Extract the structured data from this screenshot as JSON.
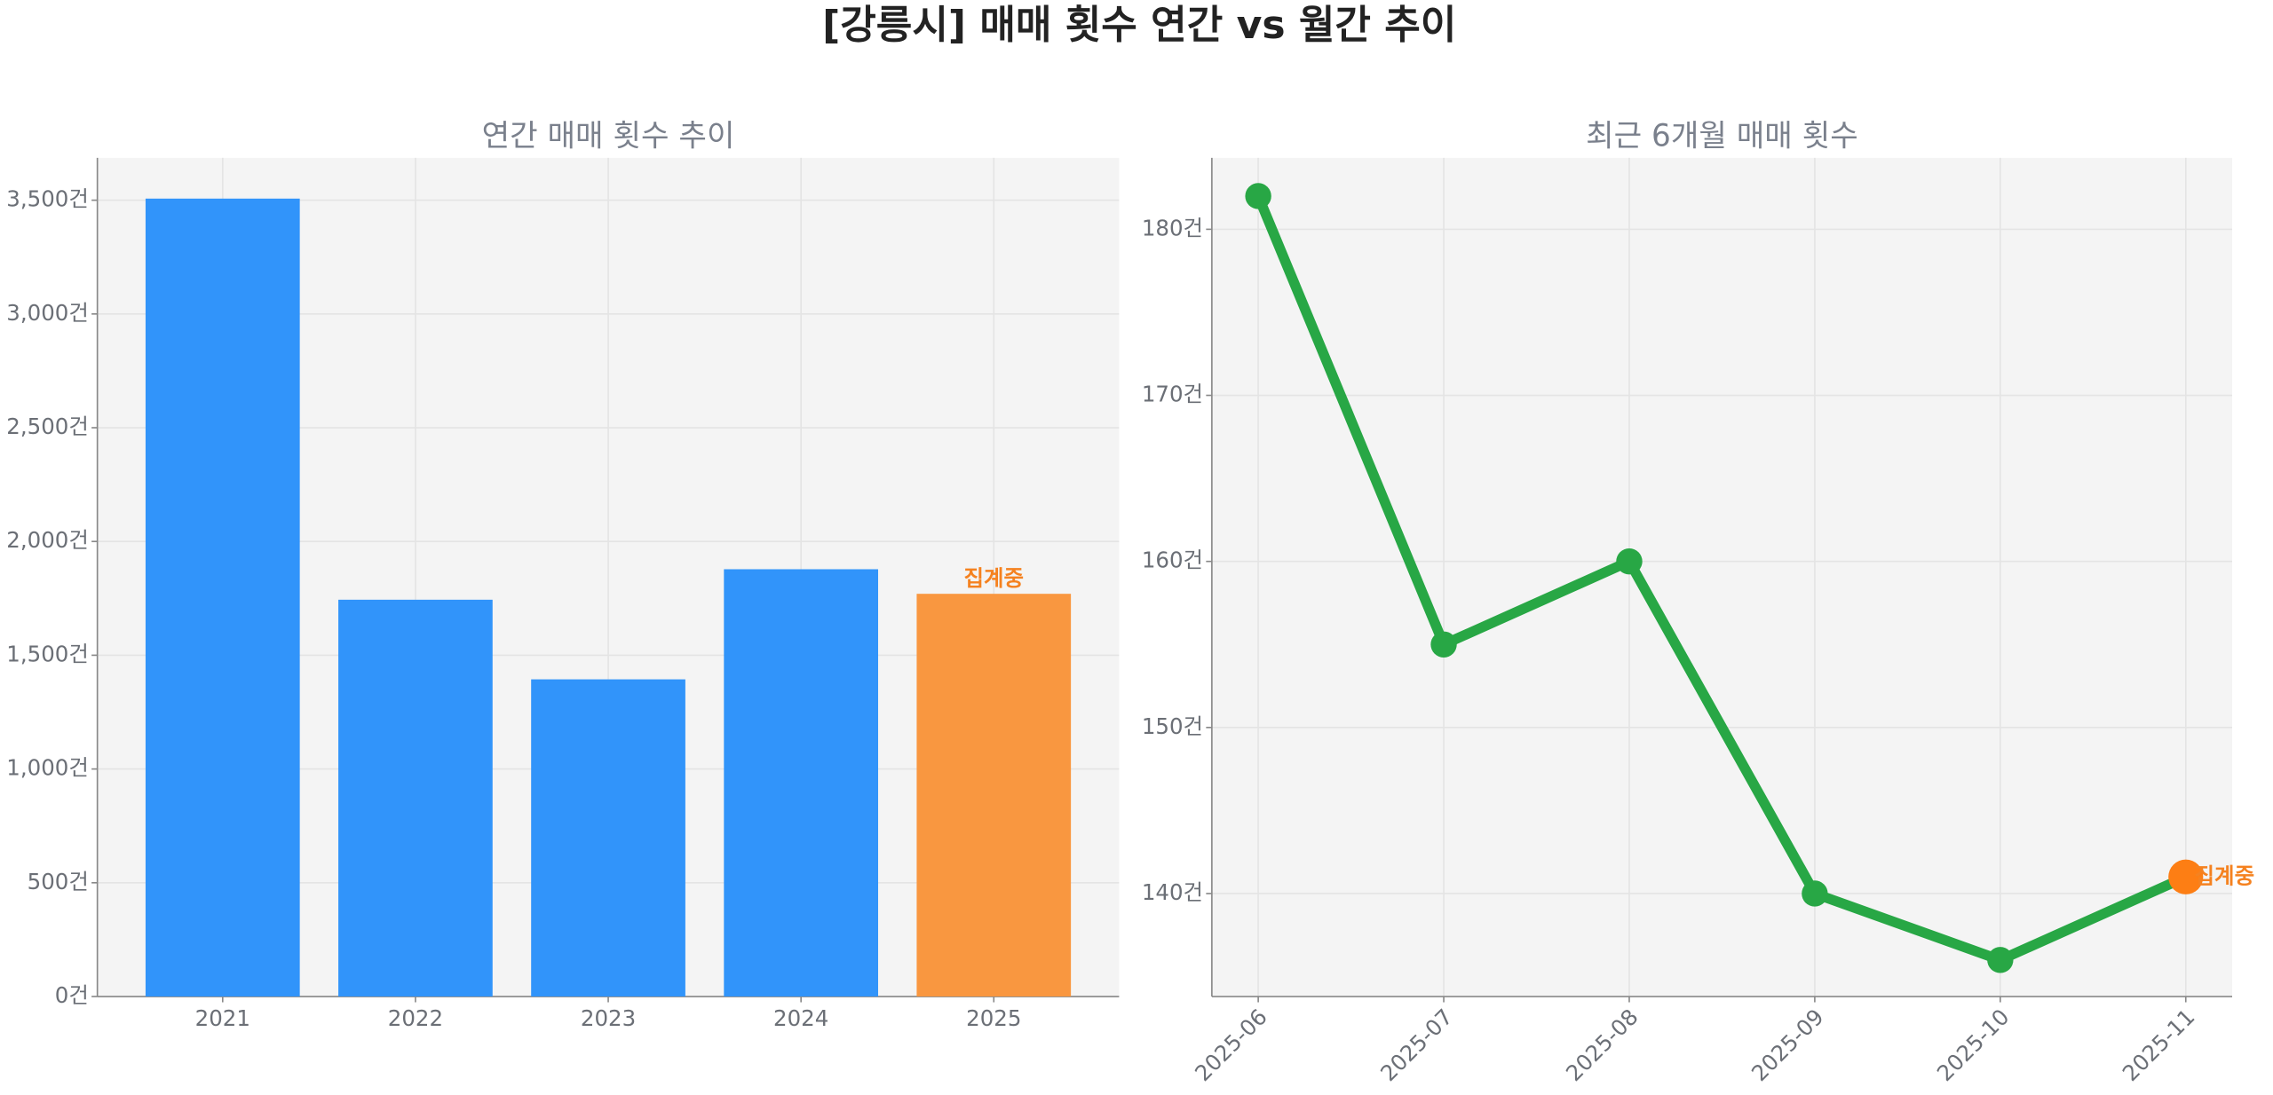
{
  "title": "[강릉시] 매매 횟수 연간 vs 월간 추이",
  "chart_data": [
    {
      "type": "bar",
      "title": "연간 매매 횟수 추이",
      "categories": [
        "2021",
        "2022",
        "2023",
        "2024",
        "2025"
      ],
      "values": [
        3507,
        1744,
        1394,
        1878,
        1770
      ],
      "colors": [
        "#3194fa",
        "#3194fa",
        "#3194fa",
        "#3194fa",
        "#f99740"
      ],
      "annotation": "집계중",
      "annotation_color": "#f58220",
      "ylim": [
        0,
        3686
      ],
      "yticks": [
        {
          "value": 0,
          "label": "0건"
        },
        {
          "value": 500,
          "label": "500건"
        },
        {
          "value": 1000,
          "label": "1,000건"
        },
        {
          "value": 1500,
          "label": "1,500건"
        },
        {
          "value": 2000,
          "label": "2,000건"
        },
        {
          "value": 2500,
          "label": "2,500건"
        },
        {
          "value": 3000,
          "label": "3,000건"
        },
        {
          "value": 3500,
          "label": "3,500건"
        }
      ],
      "grid": true
    },
    {
      "type": "line",
      "title": "최근 6개월 매매 횟수",
      "categories": [
        "2025-06",
        "2025-07",
        "2025-08",
        "2025-09",
        "2025-10",
        "2025-11"
      ],
      "values": [
        182,
        155,
        160,
        140,
        136,
        141
      ],
      "color": "#28a745",
      "highlight_color": "#fd7e14",
      "annotation": "집계중",
      "annotation_color": "#f58220",
      "ylim": [
        133.8,
        184.3
      ],
      "yticks": [
        {
          "value": 140,
          "label": "140건"
        },
        {
          "value": 150,
          "label": "150건"
        },
        {
          "value": 160,
          "label": "160건"
        },
        {
          "value": 170,
          "label": "170건"
        },
        {
          "value": 180,
          "label": "180건"
        }
      ],
      "grid": true
    }
  ]
}
